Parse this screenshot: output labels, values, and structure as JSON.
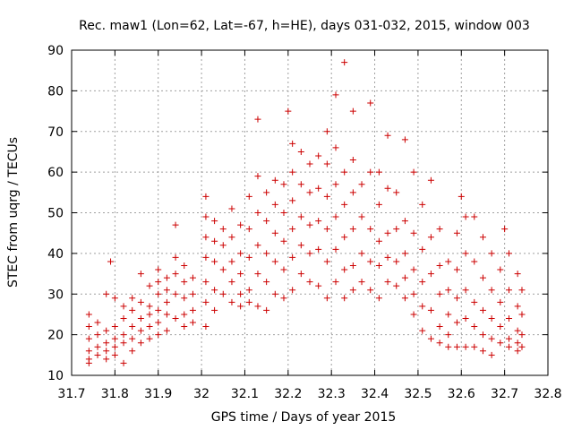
{
  "chart_data": {
    "type": "scatter",
    "title": "Rec. maw1 (Lon=62, Lat=-67, h=HE), days 031-032, 2015, window 003",
    "xlabel": "GPS time / Days of year 2015",
    "ylabel": "STEC from uqrg / TECUs",
    "xlim": [
      31.7,
      32.8
    ],
    "ylim": [
      10,
      90
    ],
    "x_ticks": [
      "31.7",
      "31.8",
      "31.9",
      "32",
      "32.1",
      "32.2",
      "32.3",
      "32.4",
      "32.5",
      "32.6",
      "32.7",
      "32.8"
    ],
    "y_ticks": [
      "10",
      "20",
      "30",
      "40",
      "50",
      "60",
      "70",
      "80",
      "90"
    ],
    "grid": true,
    "marker": "plus",
    "color": "#cc0000",
    "series": [
      {
        "points": [
          [
            31.74,
            25
          ],
          [
            31.74,
            22
          ],
          [
            31.74,
            19
          ],
          [
            31.74,
            16
          ],
          [
            31.74,
            14
          ],
          [
            31.74,
            13
          ],
          [
            31.76,
            23
          ],
          [
            31.76,
            20
          ],
          [
            31.76,
            17
          ],
          [
            31.76,
            15
          ],
          [
            31.78,
            30
          ],
          [
            31.78,
            21
          ],
          [
            31.78,
            18
          ],
          [
            31.78,
            16
          ],
          [
            31.78,
            14
          ],
          [
            31.79,
            38
          ],
          [
            31.8,
            29
          ],
          [
            31.8,
            22
          ],
          [
            31.8,
            19
          ],
          [
            31.8,
            17
          ],
          [
            31.8,
            15
          ],
          [
            31.82,
            27
          ],
          [
            31.82,
            24
          ],
          [
            31.82,
            20
          ],
          [
            31.82,
            18
          ],
          [
            31.82,
            13
          ],
          [
            31.84,
            29
          ],
          [
            31.84,
            26
          ],
          [
            31.84,
            22
          ],
          [
            31.84,
            19
          ],
          [
            31.84,
            16
          ],
          [
            31.86,
            35
          ],
          [
            31.86,
            28
          ],
          [
            31.86,
            24
          ],
          [
            31.86,
            21
          ],
          [
            31.86,
            18
          ],
          [
            31.88,
            32
          ],
          [
            31.88,
            27
          ],
          [
            31.88,
            25
          ],
          [
            31.88,
            22
          ],
          [
            31.88,
            19
          ],
          [
            31.9,
            36
          ],
          [
            31.9,
            33
          ],
          [
            31.9,
            30
          ],
          [
            31.9,
            26
          ],
          [
            31.9,
            23
          ],
          [
            31.9,
            20
          ],
          [
            31.92,
            34
          ],
          [
            31.92,
            31
          ],
          [
            31.92,
            28
          ],
          [
            31.92,
            25
          ],
          [
            31.92,
            21
          ],
          [
            31.94,
            47
          ],
          [
            31.94,
            39
          ],
          [
            31.94,
            35
          ],
          [
            31.94,
            30
          ],
          [
            31.94,
            24
          ],
          [
            31.96,
            37
          ],
          [
            31.96,
            33
          ],
          [
            31.96,
            29
          ],
          [
            31.96,
            25
          ],
          [
            31.96,
            22
          ],
          [
            31.98,
            34
          ],
          [
            31.98,
            30
          ],
          [
            31.98,
            26
          ],
          [
            31.98,
            23
          ],
          [
            32.01,
            54
          ],
          [
            32.01,
            49
          ],
          [
            32.01,
            44
          ],
          [
            32.01,
            39
          ],
          [
            32.01,
            33
          ],
          [
            32.01,
            28
          ],
          [
            32.01,
            22
          ],
          [
            32.03,
            48
          ],
          [
            32.03,
            43
          ],
          [
            32.03,
            38
          ],
          [
            32.03,
            31
          ],
          [
            32.03,
            26
          ],
          [
            32.05,
            46
          ],
          [
            32.05,
            42
          ],
          [
            32.05,
            36
          ],
          [
            32.05,
            30
          ],
          [
            32.07,
            51
          ],
          [
            32.07,
            44
          ],
          [
            32.07,
            38
          ],
          [
            32.07,
            33
          ],
          [
            32.07,
            28
          ],
          [
            32.09,
            47
          ],
          [
            32.09,
            40
          ],
          [
            32.09,
            35
          ],
          [
            32.09,
            30
          ],
          [
            32.09,
            27
          ],
          [
            32.11,
            54
          ],
          [
            32.11,
            46
          ],
          [
            32.11,
            39
          ],
          [
            32.11,
            31
          ],
          [
            32.11,
            28
          ],
          [
            32.13,
            73
          ],
          [
            32.13,
            59
          ],
          [
            32.13,
            50
          ],
          [
            32.13,
            42
          ],
          [
            32.13,
            35
          ],
          [
            32.13,
            27
          ],
          [
            32.15,
            55
          ],
          [
            32.15,
            48
          ],
          [
            32.15,
            40
          ],
          [
            32.15,
            33
          ],
          [
            32.15,
            26
          ],
          [
            32.17,
            58
          ],
          [
            32.17,
            52
          ],
          [
            32.17,
            45
          ],
          [
            32.17,
            38
          ],
          [
            32.17,
            30
          ],
          [
            32.19,
            57
          ],
          [
            32.19,
            50
          ],
          [
            32.19,
            43
          ],
          [
            32.19,
            36
          ],
          [
            32.19,
            29
          ],
          [
            32.2,
            75
          ],
          [
            32.21,
            67
          ],
          [
            32.21,
            60
          ],
          [
            32.21,
            53
          ],
          [
            32.21,
            46
          ],
          [
            32.21,
            39
          ],
          [
            32.21,
            31
          ],
          [
            32.23,
            65
          ],
          [
            32.23,
            57
          ],
          [
            32.23,
            49
          ],
          [
            32.23,
            42
          ],
          [
            32.23,
            35
          ],
          [
            32.25,
            62
          ],
          [
            32.25,
            55
          ],
          [
            32.25,
            47
          ],
          [
            32.25,
            40
          ],
          [
            32.25,
            33
          ],
          [
            32.27,
            64
          ],
          [
            32.27,
            56
          ],
          [
            32.27,
            48
          ],
          [
            32.27,
            41
          ],
          [
            32.27,
            32
          ],
          [
            32.29,
            70
          ],
          [
            32.29,
            62
          ],
          [
            32.29,
            54
          ],
          [
            32.29,
            46
          ],
          [
            32.29,
            38
          ],
          [
            32.29,
            29
          ],
          [
            32.31,
            79
          ],
          [
            32.31,
            66
          ],
          [
            32.31,
            57
          ],
          [
            32.31,
            49
          ],
          [
            32.31,
            41
          ],
          [
            32.31,
            33
          ],
          [
            32.33,
            87
          ],
          [
            32.33,
            60
          ],
          [
            32.33,
            52
          ],
          [
            32.33,
            44
          ],
          [
            32.33,
            36
          ],
          [
            32.33,
            29
          ],
          [
            32.35,
            75
          ],
          [
            32.35,
            63
          ],
          [
            32.35,
            55
          ],
          [
            32.35,
            46
          ],
          [
            32.35,
            37
          ],
          [
            32.35,
            31
          ],
          [
            32.37,
            57
          ],
          [
            32.37,
            49
          ],
          [
            32.37,
            40
          ],
          [
            32.37,
            33
          ],
          [
            32.39,
            77
          ],
          [
            32.39,
            60
          ],
          [
            32.39,
            46
          ],
          [
            32.39,
            38
          ],
          [
            32.39,
            31
          ],
          [
            32.41,
            60
          ],
          [
            32.41,
            52
          ],
          [
            32.41,
            43
          ],
          [
            32.41,
            37
          ],
          [
            32.41,
            29
          ],
          [
            32.43,
            69
          ],
          [
            32.43,
            56
          ],
          [
            32.43,
            45
          ],
          [
            32.43,
            39
          ],
          [
            32.43,
            33
          ],
          [
            32.45,
            55
          ],
          [
            32.45,
            46
          ],
          [
            32.45,
            38
          ],
          [
            32.45,
            32
          ],
          [
            32.47,
            68
          ],
          [
            32.47,
            48
          ],
          [
            32.47,
            40
          ],
          [
            32.47,
            34
          ],
          [
            32.47,
            29
          ],
          [
            32.49,
            60
          ],
          [
            32.49,
            45
          ],
          [
            32.49,
            36
          ],
          [
            32.49,
            30
          ],
          [
            32.49,
            25
          ],
          [
            32.51,
            52
          ],
          [
            32.51,
            41
          ],
          [
            32.51,
            33
          ],
          [
            32.51,
            27
          ],
          [
            32.51,
            21
          ],
          [
            32.53,
            58
          ],
          [
            32.53,
            44
          ],
          [
            32.53,
            35
          ],
          [
            32.53,
            26
          ],
          [
            32.53,
            19
          ],
          [
            32.55,
            46
          ],
          [
            32.55,
            37
          ],
          [
            32.55,
            30
          ],
          [
            32.55,
            22
          ],
          [
            32.55,
            18
          ],
          [
            32.57,
            38
          ],
          [
            32.57,
            31
          ],
          [
            32.57,
            25
          ],
          [
            32.57,
            20
          ],
          [
            32.57,
            17
          ],
          [
            32.59,
            45
          ],
          [
            32.59,
            36
          ],
          [
            32.59,
            29
          ],
          [
            32.59,
            23
          ],
          [
            32.59,
            17
          ],
          [
            32.6,
            54
          ],
          [
            32.61,
            49
          ],
          [
            32.61,
            40
          ],
          [
            32.61,
            31
          ],
          [
            32.61,
            24
          ],
          [
            32.61,
            17
          ],
          [
            32.63,
            49
          ],
          [
            32.63,
            38
          ],
          [
            32.63,
            28
          ],
          [
            32.63,
            22
          ],
          [
            32.63,
            17
          ],
          [
            32.65,
            44
          ],
          [
            32.65,
            34
          ],
          [
            32.65,
            26
          ],
          [
            32.65,
            20
          ],
          [
            32.65,
            16
          ],
          [
            32.67,
            40
          ],
          [
            32.67,
            31
          ],
          [
            32.67,
            24
          ],
          [
            32.67,
            19
          ],
          [
            32.67,
            15
          ],
          [
            32.69,
            36
          ],
          [
            32.69,
            28
          ],
          [
            32.69,
            22
          ],
          [
            32.69,
            18
          ],
          [
            32.7,
            46
          ],
          [
            32.71,
            40
          ],
          [
            32.71,
            31
          ],
          [
            32.71,
            24
          ],
          [
            32.71,
            19
          ],
          [
            32.71,
            17
          ],
          [
            32.73,
            35
          ],
          [
            32.73,
            27
          ],
          [
            32.73,
            21
          ],
          [
            32.73,
            18
          ],
          [
            32.73,
            16
          ],
          [
            32.74,
            31
          ],
          [
            32.74,
            25
          ],
          [
            32.74,
            20
          ],
          [
            32.74,
            17
          ]
        ]
      }
    ]
  }
}
